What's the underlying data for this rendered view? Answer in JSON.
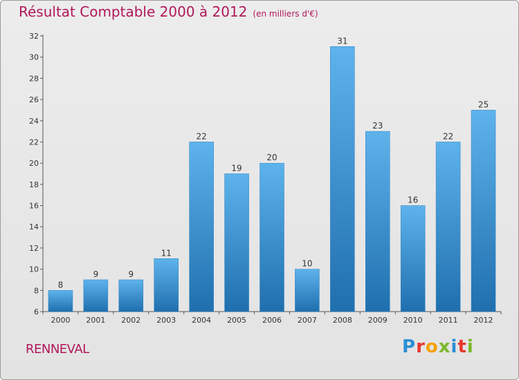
{
  "header": {
    "title": "Résultat Comptable 2000 à 2012",
    "subtitle": "(en milliers d'€)"
  },
  "footer": {
    "commune": "RENNEVAL",
    "logo_letters": [
      "P",
      "r",
      "o",
      "x",
      "i",
      "t",
      "i"
    ],
    "logo_colors": [
      "#2a8fd6",
      "#e8372d",
      "#f6a100",
      "#7ab929",
      "#2a8fd6",
      "#e8372d",
      "#7ab929"
    ]
  },
  "colors": {
    "title": "#b0185a",
    "bar_top": "#5eb3ec",
    "bar_bottom": "#1f6fae"
  },
  "chart_data": {
    "type": "bar",
    "title": "Résultat Comptable 2000 à 2012",
    "subtitle": "(en milliers d'€)",
    "categories": [
      "2000",
      "2001",
      "2002",
      "2003",
      "2004",
      "2005",
      "2006",
      "2007",
      "2008",
      "2009",
      "2010",
      "2011",
      "2012"
    ],
    "values": [
      8,
      9,
      9,
      11,
      22,
      19,
      20,
      10,
      31,
      23,
      16,
      22,
      25
    ],
    "xlabel": "",
    "ylabel": "",
    "ylim": [
      6,
      32
    ],
    "yticks": [
      6,
      8,
      10,
      12,
      14,
      16,
      18,
      20,
      22,
      24,
      26,
      28,
      30,
      32
    ],
    "grid": false,
    "legend": "none"
  }
}
